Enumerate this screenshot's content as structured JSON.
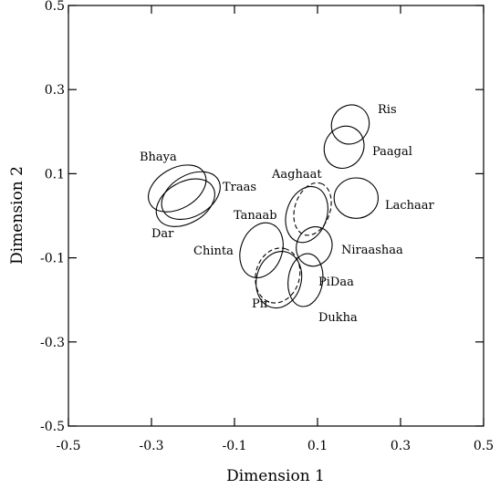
{
  "chart_data": {
    "type": "scatter",
    "title": "",
    "xlabel": "Dimension 1",
    "ylabel": "Dimension 2",
    "xlim": [
      -0.5,
      0.5
    ],
    "ylim": [
      -0.5,
      0.5
    ],
    "x_ticks": [
      "-0.5",
      "-0.3",
      "-0.1",
      "0.1",
      "0.3",
      "0.5"
    ],
    "y_ticks": [
      "0.5",
      "0.3",
      "0.1",
      "-0.1",
      "-0.3",
      "-0.5"
    ],
    "x_tick_values": [
      -0.5,
      -0.3,
      -0.1,
      0.1,
      0.3,
      0.5
    ],
    "y_tick_values": [
      0.5,
      0.3,
      0.1,
      -0.1,
      -0.3,
      -0.5
    ],
    "grid": false,
    "points": [
      {
        "label": "Ris",
        "ellipses": [
          {
            "x": 0.179,
            "y": 0.217,
            "rx": 0.048,
            "ry": 0.044,
            "angle": -60,
            "style": "solid"
          }
        ]
      },
      {
        "label": "Paagal",
        "ellipses": [
          {
            "x": 0.164,
            "y": 0.163,
            "rx": 0.052,
            "ry": 0.046,
            "angle": -60,
            "style": "solid"
          }
        ]
      },
      {
        "label": "Aaghaat",
        "ellipses": [
          {
            "x": 0.088,
            "y": 0.016,
            "rx": 0.065,
            "ry": 0.042,
            "angle": -72,
            "style": "dashed"
          },
          {
            "x": 0.074,
            "y": 0.003,
            "rx": 0.069,
            "ry": 0.048,
            "angle": -72,
            "style": "solid"
          }
        ]
      },
      {
        "label": "Lachaar",
        "ellipses": [
          {
            "x": 0.193,
            "y": 0.042,
            "rx": 0.053,
            "ry": 0.048,
            "angle": 0,
            "style": "solid"
          }
        ]
      },
      {
        "label": "Bhaya",
        "ellipses": [
          {
            "x": -0.238,
            "y": 0.065,
            "rx": 0.075,
            "ry": 0.048,
            "angle": -30,
            "style": "solid"
          }
        ]
      },
      {
        "label": "Traas",
        "ellipses": [
          {
            "x": -0.205,
            "y": 0.048,
            "rx": 0.076,
            "ry": 0.049,
            "angle": -30,
            "style": "solid"
          }
        ]
      },
      {
        "label": "Dar",
        "ellipses": [
          {
            "x": -0.218,
            "y": 0.031,
            "rx": 0.076,
            "ry": 0.049,
            "angle": -30,
            "style": "solid"
          }
        ]
      },
      {
        "label": "Chinta",
        "ellipses": [
          {
            "x": -0.035,
            "y": -0.082,
            "rx": 0.068,
            "ry": 0.049,
            "angle": -70,
            "style": "solid"
          }
        ]
      },
      {
        "label": "Niraashaa",
        "ellipses": [
          {
            "x": 0.092,
            "y": -0.073,
            "rx": 0.048,
            "ry": 0.042,
            "angle": -70,
            "style": "solid"
          }
        ]
      },
      {
        "label": "PiDaa",
        "ellipses": [
          {
            "x": 0.004,
            "y": -0.142,
            "rx": 0.067,
            "ry": 0.052,
            "angle": -75,
            "style": "dashed"
          }
        ]
      },
      {
        "label": "Pir",
        "ellipses": [
          {
            "x": 0.007,
            "y": -0.152,
            "rx": 0.069,
            "ry": 0.053,
            "angle": -75,
            "style": "solid"
          }
        ]
      },
      {
        "label": "Dukha",
        "ellipses": [
          {
            "x": 0.071,
            "y": -0.153,
            "rx": 0.064,
            "ry": 0.041,
            "angle": -82,
            "style": "solid"
          }
        ]
      }
    ]
  }
}
